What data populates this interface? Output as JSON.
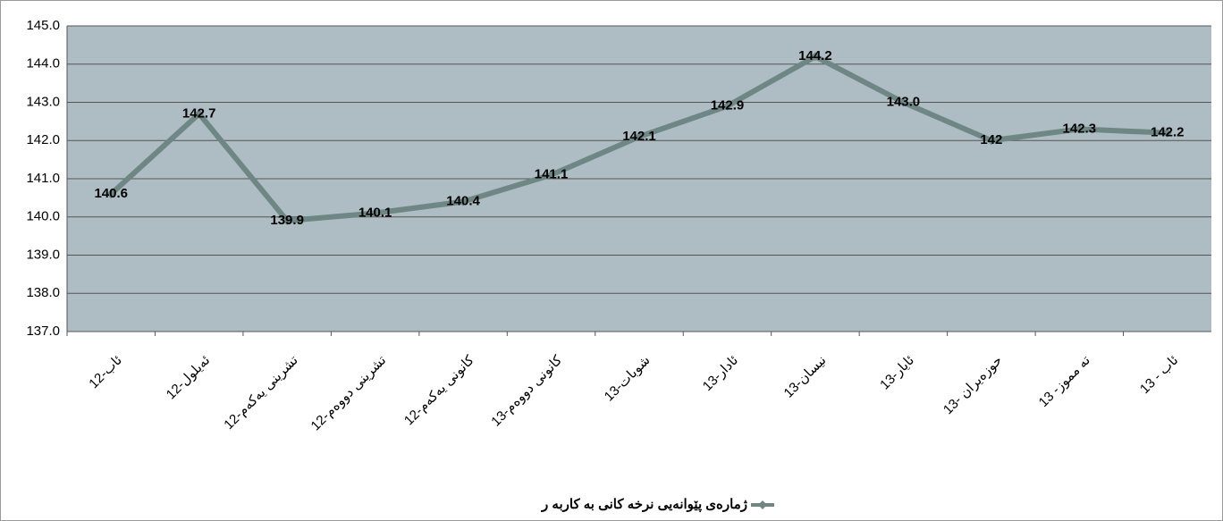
{
  "chart_data": {
    "type": "line",
    "categories": [
      "12-ئاب",
      "12-ئەیلول",
      "12-تشرینی یەکەم",
      "12-تشرینی دووەم",
      "12-کانونی یەکەم",
      "13-کانونی دووەم",
      "13-شوبات",
      "13-ئادار",
      "13-نیسان",
      "13-ئایار",
      "13- حوزەیران",
      "13 -تە مموز",
      "13 - ئاب"
    ],
    "series": [
      {
        "name": "ژمارەی پێوانەیی نرخە کانی بە کاربە ر",
        "color": "#6e8784",
        "values": [
          140.6,
          142.7,
          139.9,
          140.1,
          140.4,
          141.1,
          142.1,
          142.9,
          144.2,
          143.0,
          142,
          142.3,
          142.2
        ],
        "value_labels": [
          "140.6",
          "142.7",
          "139.9",
          "140.1",
          "140.4",
          "141.1",
          "142.1",
          "142.9",
          "144.2",
          "143.0",
          "142",
          "142.3",
          "142.2"
        ]
      }
    ],
    "ylim": [
      137,
      145
    ],
    "yticks": [
      {
        "value": 137,
        "label": "137.0"
      },
      {
        "value": 138,
        "label": "138.0"
      },
      {
        "value": 139,
        "label": "139.0"
      },
      {
        "value": 140,
        "label": "140.0"
      },
      {
        "value": 141,
        "label": "141.0"
      },
      {
        "value": 142,
        "label": "142.0"
      },
      {
        "value": 143,
        "label": "143.0"
      },
      {
        "value": 144,
        "label": "144.0"
      },
      {
        "value": 145,
        "label": "145.0"
      }
    ],
    "grid": true,
    "legend": "bottom",
    "plot_background": "#aebcc3"
  }
}
